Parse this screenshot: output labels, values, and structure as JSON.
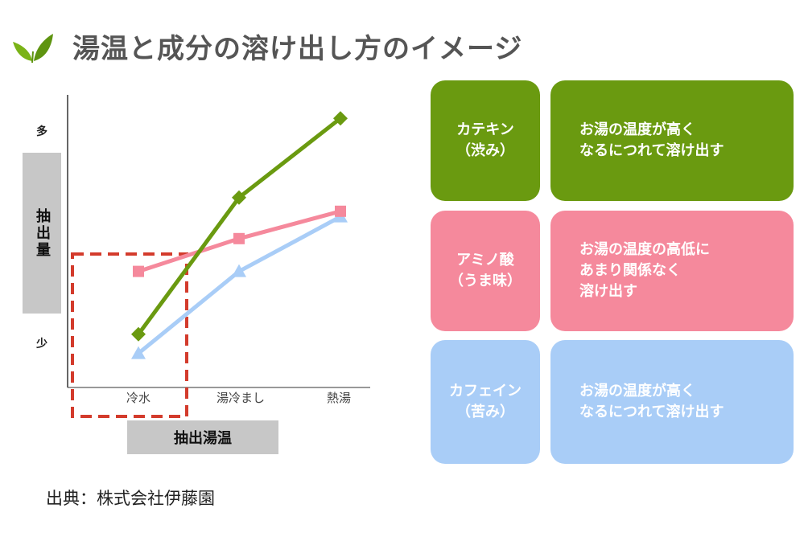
{
  "title": "湯温と成分の溶け出し方のイメージ",
  "leaf_icon": "tea-leaf-icon",
  "chart_data": {
    "type": "line",
    "categories": [
      "冷水",
      "湯冷まし",
      "熱湯"
    ],
    "xlabel": "抽出湯温",
    "ylabel": "抽出量",
    "y_ticks": {
      "high": "多",
      "low": "少"
    },
    "ylim": [
      0,
      100
    ],
    "highlight_category": "冷水",
    "series": [
      {
        "key": "catechin",
        "color": "#6a9a10",
        "marker": "diamond",
        "values": [
          13,
          63,
          92
        ]
      },
      {
        "key": "amino",
        "color": "#f5899c",
        "marker": "square",
        "values": [
          36,
          48,
          58
        ]
      },
      {
        "key": "caffeine",
        "color": "#a9cdf7",
        "marker": "triangle",
        "values": [
          6,
          36,
          56
        ]
      }
    ],
    "grid": false
  },
  "colors": {
    "catechin": "#6a9a10",
    "amino": "#f5899c",
    "caffeine": "#a9cdf7",
    "highlight": "#d33b2c"
  },
  "legend_cards": [
    {
      "key": "catechin",
      "name_lines": [
        "カテキン",
        "（渋み）"
      ],
      "desc_lines": [
        "お湯の温度が高く",
        "なるにつれて溶け出す"
      ]
    },
    {
      "key": "amino",
      "name_lines": [
        "アミノ酸",
        "（うま味）"
      ],
      "desc_lines": [
        "お湯の温度の高低に",
        "あまり関係なく",
        "溶け出す"
      ]
    },
    {
      "key": "caffeine",
      "name_lines": [
        "カフェイン",
        "（苦み）"
      ],
      "desc_lines": [
        "お湯の温度が高く",
        "なるにつれて溶け出す"
      ]
    }
  ],
  "source": "出典：株式会社伊藤園"
}
